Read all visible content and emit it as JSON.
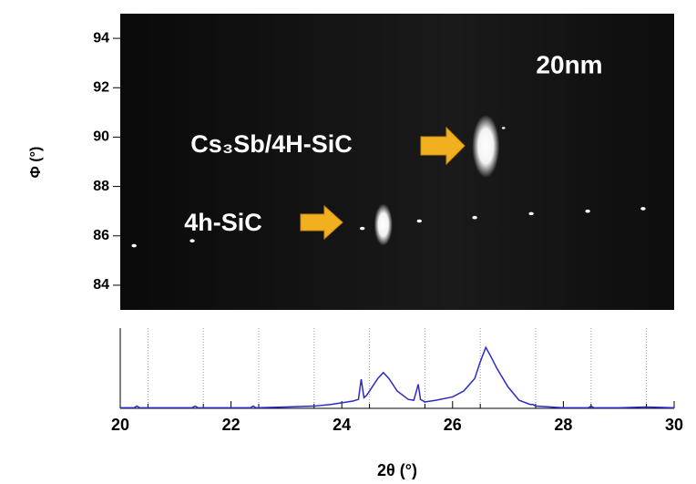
{
  "chart_data": [
    {
      "type": "scatter",
      "ylabel": "Φ (°)",
      "xlim": [
        20,
        30
      ],
      "ylim": [
        83,
        95
      ],
      "yticks": [
        84,
        86,
        88,
        90,
        92,
        94
      ],
      "x": [
        20.25,
        21.3,
        24.37,
        24.75,
        25.4,
        26.4,
        26.6,
        26.92,
        27.42,
        28.44,
        29.44
      ],
      "y": [
        85.6,
        85.8,
        86.3,
        86.45,
        86.6,
        86.74,
        89.63,
        90.37,
        86.9,
        87.0,
        87.1
      ],
      "sizes": [
        3,
        3,
        3,
        10,
        3,
        3,
        15,
        2,
        3,
        3,
        3
      ],
      "color": "#ffffff",
      "annotations": [
        "20nm",
        "Cs₃Sb/4H-SiC",
        "4h-SiC"
      ]
    },
    {
      "type": "line",
      "xlabel": "2θ (°)",
      "xlim": [
        20,
        30
      ],
      "xticks": [
        20,
        22,
        24,
        26,
        28,
        30
      ],
      "xminor": [
        20.5,
        21.5,
        22.5,
        23.5,
        24.5,
        25.5,
        26.5,
        27.5,
        28.5,
        29.5
      ],
      "ylim": [
        0,
        100
      ],
      "grid": true,
      "series": [
        {
          "color": "#2a2ac8",
          "x": [
            20,
            20.25,
            20.3,
            20.35,
            21,
            21.3,
            21.35,
            21.4,
            22,
            22.35,
            22.4,
            22.45,
            23,
            23.5,
            23.8,
            24,
            24.2,
            24.3,
            24.35,
            24.4,
            24.45,
            24.55,
            24.65,
            24.75,
            24.85,
            25,
            25.2,
            25.3,
            25.38,
            25.42,
            25.5,
            25.7,
            26,
            26.2,
            26.4,
            26.5,
            26.6,
            26.7,
            26.8,
            27,
            27.2,
            27.4,
            27.45,
            27.5,
            28,
            28.45,
            28.5,
            28.55,
            29,
            29.5,
            30
          ],
          "values": [
            5,
            5,
            7,
            5,
            5,
            5,
            7,
            5,
            5,
            5,
            7,
            5,
            6,
            7,
            9,
            11,
            13,
            15,
            39,
            17,
            20,
            30,
            40,
            47,
            40,
            25,
            15,
            14,
            33,
            15,
            12,
            14,
            18,
            25,
            40,
            60,
            77,
            65,
            52,
            30,
            14,
            9,
            9,
            7,
            5,
            5,
            7,
            5,
            5,
            6,
            5
          ]
        }
      ]
    }
  ]
}
